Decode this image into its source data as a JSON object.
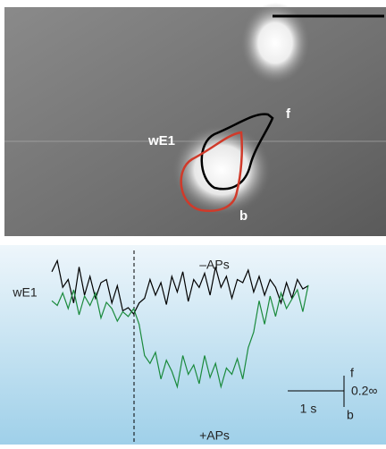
{
  "image": {
    "labels": {
      "cell": "wE1",
      "front": "f",
      "back": "b"
    }
  },
  "traces": {
    "label_cell": "wE1",
    "label_minus": "–APs",
    "label_plus": "+APs",
    "scale_time": "1 s",
    "scale_signal": "0.2∞",
    "scale_front": "f",
    "scale_back": "b",
    "minus_aps": {
      "color": "#000000",
      "values": [
        0.15,
        0.22,
        0.05,
        0.1,
        -0.05,
        0.18,
        0.0,
        0.12,
        -0.02,
        0.08,
        0.1,
        -0.05,
        0.06,
        -0.1,
        -0.08,
        -0.12,
        -0.05,
        -0.02,
        0.1,
        0.0,
        0.08,
        -0.06,
        0.12,
        0.02,
        0.15,
        -0.04,
        0.1,
        0.05,
        0.14,
        0.0,
        0.18,
        0.05,
        0.12,
        -0.02,
        0.1,
        0.08,
        0.16,
        0.02,
        0.12,
        0.0,
        0.1,
        0.05,
        -0.05,
        0.08,
        -0.02,
        0.1,
        0.04,
        0.06
      ]
    },
    "plus_aps": {
      "color": "#1a8a3c",
      "values": [
        0.05,
        0.02,
        0.1,
        0.0,
        0.12,
        -0.04,
        0.08,
        0.02,
        0.1,
        -0.06,
        0.04,
        0.0,
        -0.08,
        -0.02,
        -0.05,
        0.0,
        -0.1,
        -0.3,
        -0.35,
        -0.28,
        -0.45,
        -0.33,
        -0.4,
        -0.5,
        -0.3,
        -0.42,
        -0.36,
        -0.48,
        -0.3,
        -0.44,
        -0.35,
        -0.5,
        -0.38,
        -0.42,
        -0.32,
        -0.45,
        -0.25,
        -0.15,
        0.05,
        -0.1,
        0.08,
        -0.05,
        0.1,
        0.0,
        0.06,
        0.12,
        -0.02,
        0.15
      ]
    }
  }
}
